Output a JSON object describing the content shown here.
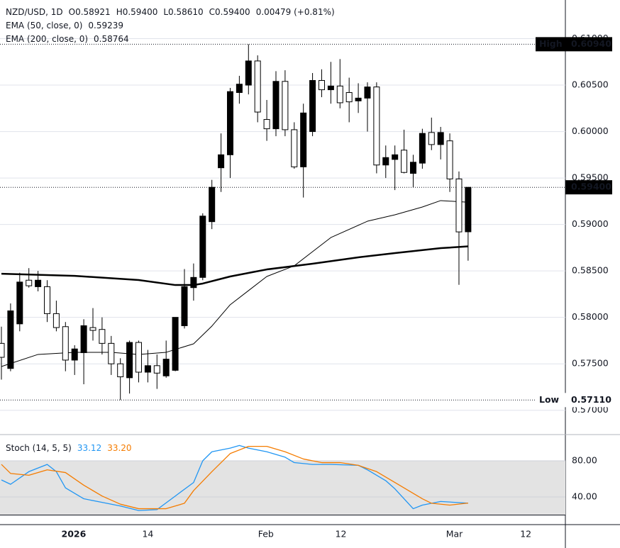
{
  "chart_data": [
    {
      "type": "candlestick",
      "title": "NZD/USD, 1D",
      "ohlc_labels": [
        "O0.58921",
        "H0.59400",
        "L0.58610",
        "C0.59400",
        "0.00479 (+0.81%)"
      ],
      "x": [
        0,
        1,
        2,
        3,
        4,
        5,
        6,
        7,
        8,
        9,
        10,
        11,
        12,
        13,
        14,
        15,
        16,
        17,
        18,
        19,
        20,
        21,
        22,
        23,
        24,
        25,
        26,
        27,
        28,
        29,
        30,
        31,
        32,
        33,
        34,
        35,
        36,
        37,
        38,
        39,
        40,
        41,
        42,
        43,
        44,
        45,
        46,
        47,
        48,
        49,
        50,
        51
      ],
      "open": [
        0.5772,
        0.5745,
        0.5793,
        0.584,
        0.5833,
        0.5833,
        0.5804,
        0.579,
        0.5754,
        0.5762,
        0.5789,
        0.5787,
        0.5772,
        0.575,
        0.5735,
        0.5773,
        0.5741,
        0.5748,
        0.5737,
        0.5743,
        0.5791,
        0.5832,
        0.5843,
        0.5903,
        0.5961,
        0.5975,
        0.6042,
        0.605,
        0.6076,
        0.6013,
        0.6003,
        0.6054,
        0.6002,
        0.5962,
        0.6,
        0.6055,
        0.6045,
        0.6049,
        0.6042,
        0.6033,
        0.6036,
        0.6048,
        0.5964,
        0.597,
        0.598,
        0.5955,
        0.5966,
        0.5999,
        0.5986,
        0.599,
        0.5949,
        0.58921
      ],
      "high": [
        0.579,
        0.5815,
        0.5848,
        0.5853,
        0.585,
        0.584,
        0.5818,
        0.5795,
        0.577,
        0.5798,
        0.581,
        0.58,
        0.578,
        0.5756,
        0.5775,
        0.5775,
        0.5765,
        0.576,
        0.5775,
        0.58,
        0.5852,
        0.5858,
        0.5912,
        0.5948,
        0.5998,
        0.6047,
        0.606,
        0.6094,
        0.6082,
        0.6034,
        0.6065,
        0.6066,
        0.601,
        0.603,
        0.6063,
        0.6067,
        0.6075,
        0.6078,
        0.6058,
        0.6052,
        0.6053,
        0.6053,
        0.5985,
        0.5985,
        0.6002,
        0.5975,
        0.6003,
        0.6015,
        0.6005,
        0.5998,
        0.5957,
        0.594
      ],
      "low": [
        0.5733,
        0.5742,
        0.5785,
        0.5832,
        0.5828,
        0.5795,
        0.5785,
        0.5742,
        0.5738,
        0.5728,
        0.5775,
        0.576,
        0.5738,
        0.5711,
        0.5718,
        0.573,
        0.573,
        0.5723,
        0.5735,
        0.5742,
        0.5788,
        0.5818,
        0.584,
        0.5895,
        0.5935,
        0.595,
        0.603,
        0.604,
        0.601,
        0.599,
        0.5995,
        0.5995,
        0.596,
        0.5929,
        0.5995,
        0.6037,
        0.603,
        0.6025,
        0.601,
        0.602,
        0.6,
        0.5955,
        0.595,
        0.5937,
        0.5955,
        0.594,
        0.596,
        0.598,
        0.597,
        0.5935,
        0.5835,
        0.5861
      ],
      "close": [
        0.5757,
        0.5807,
        0.5838,
        0.5834,
        0.584,
        0.5804,
        0.5789,
        0.5754,
        0.5766,
        0.5791,
        0.5786,
        0.5772,
        0.575,
        0.5736,
        0.5773,
        0.5741,
        0.5748,
        0.574,
        0.5755,
        0.58,
        0.5833,
        0.5843,
        0.5909,
        0.594,
        0.5975,
        0.6043,
        0.6051,
        0.6076,
        0.6021,
        0.6003,
        0.6054,
        0.6002,
        0.5962,
        0.602,
        0.6055,
        0.6045,
        0.6049,
        0.6031,
        0.6032,
        0.6036,
        0.6048,
        0.5964,
        0.5972,
        0.5975,
        0.5956,
        0.5967,
        0.5998,
        0.5986,
        0.5999,
        0.5949,
        0.5892,
        0.594
      ],
      "up_color": "#000000",
      "down_color": "#ffffff",
      "border_color": "#000000",
      "series": [
        {
          "name": "EMA (50, close, 0)",
          "value_label": "0.59239",
          "color": "#000000",
          "width": 1,
          "x": [
            0,
            4,
            8,
            12,
            15,
            18,
            21,
            23,
            25,
            27,
            29,
            32,
            34,
            36,
            40,
            43,
            46,
            48,
            51
          ],
          "values": [
            0.57471,
            0.57601,
            0.57624,
            0.57624,
            0.57601,
            0.57624,
            0.57715,
            0.57906,
            0.58136,
            0.58288,
            0.5844,
            0.58555,
            0.58707,
            0.58859,
            0.59035,
            0.59104,
            0.59188,
            0.59257,
            0.59239
          ]
        },
        {
          "name": "EMA (200, close, 0)",
          "value_label": "0.58764",
          "color": "#000000",
          "width": 2.5,
          "x": [
            0,
            8,
            15,
            19,
            21,
            22,
            25,
            29,
            34,
            39,
            43,
            48,
            51
          ],
          "values": [
            0.5847,
            0.58447,
            0.58402,
            0.58348,
            0.58348,
            0.58364,
            0.5844,
            0.58516,
            0.58577,
            0.58646,
            0.58692,
            0.58745,
            0.58764
          ]
        }
      ],
      "xlim": [
        -0.155,
        61.63
      ],
      "ylim": [
        0.56746,
        0.61416
      ],
      "yticks": [
        {
          "value": 0.61,
          "label": "0.61000"
        },
        {
          "value": 0.605,
          "label": "0.60500"
        },
        {
          "value": 0.6,
          "label": "0.60000"
        },
        {
          "value": 0.595,
          "label": "0.59500"
        },
        {
          "value": 0.59,
          "label": "0.59000"
        },
        {
          "value": 0.585,
          "label": "0.58500"
        },
        {
          "value": 0.58,
          "label": "0.58000"
        },
        {
          "value": 0.575,
          "label": "0.57500"
        },
        {
          "value": 0.57,
          "label": "0.57000"
        }
      ],
      "xticks": [
        {
          "value": 7.9,
          "label": "2026"
        },
        {
          "value": 16,
          "label": "14"
        },
        {
          "value": 28.9,
          "label": "Feb"
        },
        {
          "value": 37.1,
          "label": "12"
        },
        {
          "value": 49.5,
          "label": "Mar"
        },
        {
          "value": 57.3,
          "label": "12"
        }
      ],
      "markers": [
        {
          "label": "High",
          "value": 0.6094,
          "value_label": "0.60940"
        },
        {
          "label": "Low",
          "value": 0.5711,
          "value_label": "0.57110"
        }
      ],
      "last_price": {
        "value": 0.594,
        "value_label": "0.59400"
      },
      "grid": true
    },
    {
      "type": "line",
      "title": "Stoch (14, 5, 5)",
      "series": [
        {
          "value_label": "33.12",
          "color": "#2196f3",
          "x": [
            0,
            1,
            3,
            5,
            6,
            7,
            9,
            11,
            13,
            15,
            17,
            19,
            21,
            22,
            23,
            25,
            26,
            27,
            29,
            31,
            32,
            34,
            36,
            39,
            40,
            42,
            43,
            45,
            46,
            48,
            51
          ],
          "values": [
            58.8,
            54,
            68,
            76,
            68,
            50,
            38,
            34,
            30,
            25,
            26,
            41,
            56,
            80,
            90,
            94,
            97,
            94,
            90,
            84,
            78,
            76,
            76,
            75,
            70,
            58,
            49,
            27,
            31,
            35,
            33.12
          ]
        },
        {
          "value_label": "33.20",
          "color": "#f57c00",
          "x": [
            0,
            1,
            3,
            5,
            7,
            9,
            11,
            13,
            15,
            18,
            20,
            21,
            23,
            25,
            27,
            29,
            31,
            33,
            35,
            37,
            39,
            41,
            43,
            46,
            47,
            49,
            51
          ],
          "values": [
            76,
            66,
            64,
            70,
            67,
            53,
            41,
            32,
            27,
            27,
            33,
            47,
            68,
            88,
            96,
            96,
            90,
            82,
            78,
            78,
            75,
            68,
            56,
            38,
            33,
            31,
            33.2
          ]
        }
      ],
      "band": [
        20,
        80
      ],
      "band_color": "#e3e3e3",
      "ylim": [
        9.4,
        109.8
      ],
      "yticks": [
        {
          "value": 80,
          "label": "80.00"
        },
        {
          "value": 40,
          "label": "40.00"
        }
      ]
    }
  ]
}
